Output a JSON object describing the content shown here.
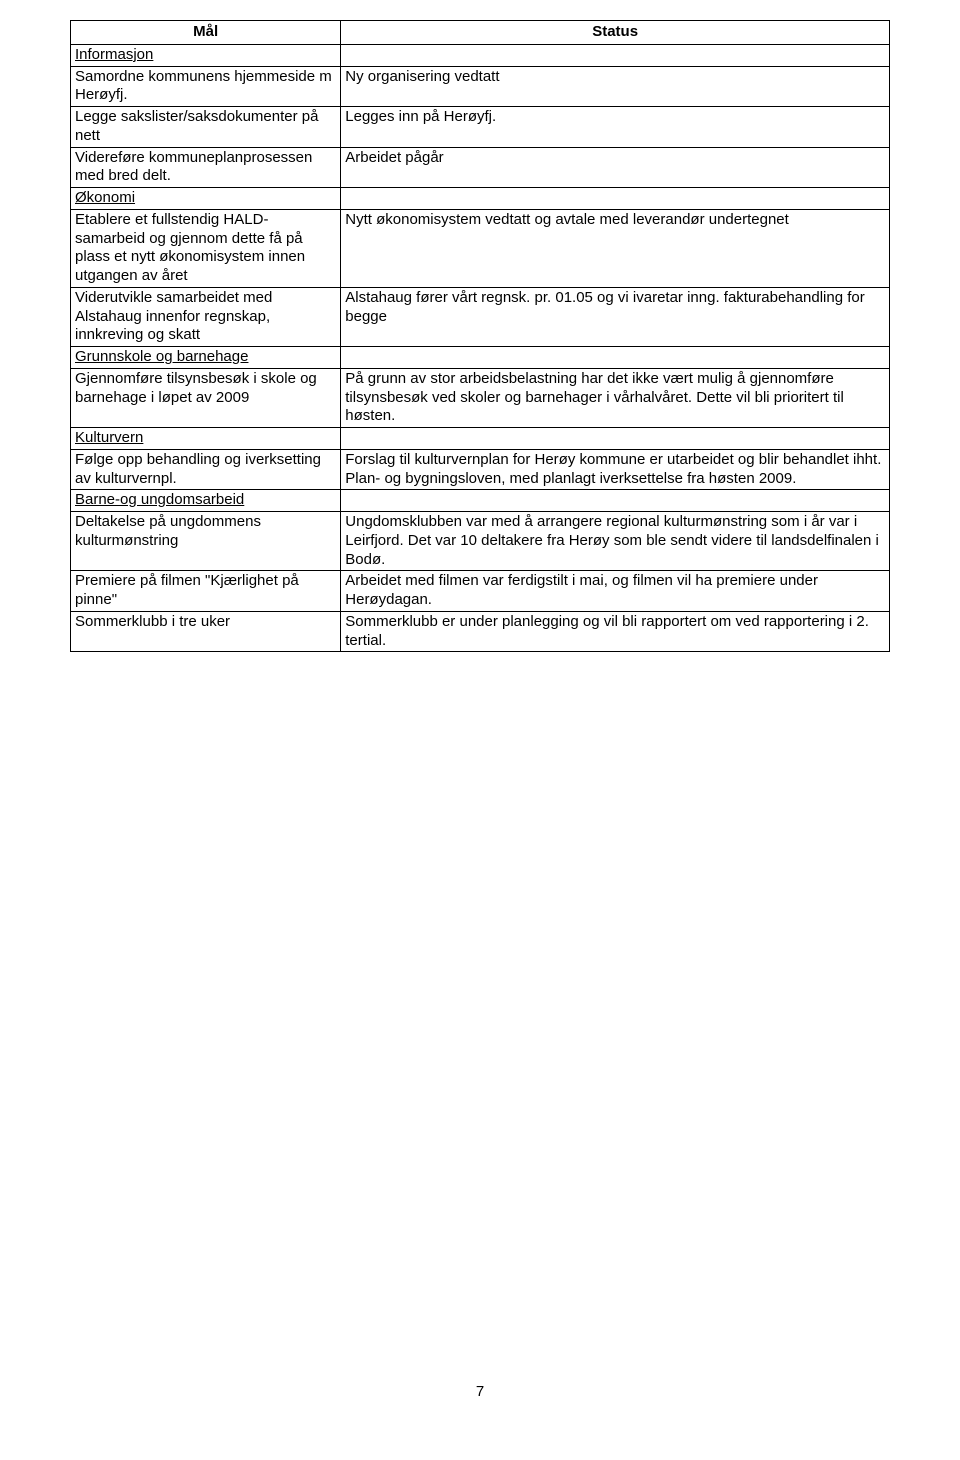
{
  "header": {
    "mal": "Mål",
    "status": "Status"
  },
  "rows": [
    {
      "left_text": "Informasjon",
      "left_underline": true,
      "right_text": ""
    },
    {
      "left_text": "Samordne kommunens hjemmeside m Herøyfj.",
      "left_underline": false,
      "right_text": "Ny organisering vedtatt"
    },
    {
      "left_text": "Legge sakslister/saksdokumenter på nett",
      "left_underline": false,
      "right_text": "Legges inn på Herøyfj."
    },
    {
      "left_text": "Videreføre kommuneplanprosessen med bred delt.",
      "left_underline": false,
      "right_text": "Arbeidet pågår"
    },
    {
      "left_text": "Økonomi",
      "left_underline": true,
      "right_text": ""
    },
    {
      "left_text": "Etablere et fullstendig HALD-samarbeid og gjennom dette få på plass et nytt økonomisystem innen utgangen av året",
      "left_underline": false,
      "right_text": "Nytt økonomisystem vedtatt og avtale med leverandør undertegnet"
    },
    {
      "left_text": "Viderutvikle samarbeidet med Alstahaug innenfor regnskap, innkreving og skatt",
      "left_underline": false,
      "right_text": "Alstahaug fører vårt regnsk. pr. 01.05 og vi ivaretar inng. fakturabehandling for begge"
    },
    {
      "left_text": "Grunnskole og barnehage",
      "left_underline": true,
      "right_text": ""
    },
    {
      "left_text": "Gjennomføre tilsynsbesøk i skole og barnehage i løpet av 2009",
      "left_underline": false,
      "right_text": "På grunn av stor arbeidsbelastning har det ikke vært mulig å gjennomføre tilsynsbesøk ved skoler og barnehager i vårhalvåret. Dette vil bli prioritert til høsten."
    },
    {
      "left_text": "Kulturvern",
      "left_underline": true,
      "right_text": ""
    },
    {
      "left_text": "Følge opp behandling og iverksetting av kulturvernpl.",
      "left_underline": false,
      "right_text": "Forslag til kulturvernplan for Herøy kommune er utarbeidet og blir behandlet ihht. Plan- og bygningsloven, med planlagt iverksettelse fra høsten 2009."
    },
    {
      "left_text": "Barne-og ungdomsarbeid",
      "left_underline": true,
      "right_text": ""
    },
    {
      "left_text": "Deltakelse på ungdommens kulturmønstring",
      "left_underline": false,
      "right_text": "Ungdomsklubben var med å arrangere regional kulturmønstring som i år var i Leirfjord.  Det var 10 deltakere fra Herøy som ble sendt videre til landsdelfinalen i Bodø."
    },
    {
      "left_text": "Premiere på filmen \"Kjærlighet på pinne\"",
      "left_underline": false,
      "right_text": "Arbeidet med filmen var ferdigstilt i mai, og filmen vil ha premiere under Herøydagan."
    },
    {
      "left_text": "Sommerklubb i tre uker",
      "left_underline": false,
      "right_text": "Sommerklubb er under planlegging og vil bli rapportert om ved rapportering i 2. tertial."
    }
  ],
  "page_number": "7"
}
